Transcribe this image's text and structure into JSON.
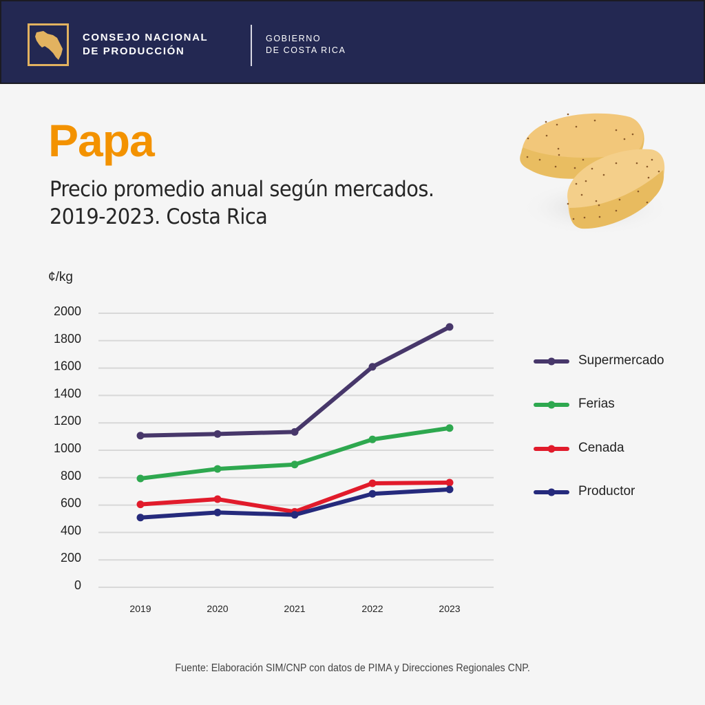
{
  "header": {
    "org_line1": "CONSEJO NACIONAL",
    "org_line2": "DE PRODUCCIÓN",
    "gov_line1": "GOBIERNO",
    "gov_line2": "DE COSTA RICA",
    "logo_icon": "costa-rica-map-icon",
    "colors": {
      "background": "#232852",
      "logo": "#e2b260"
    }
  },
  "title": "Papa",
  "subtitle_line1": "Precio promedio anual según mercados.",
  "subtitle_line2": "2019-2023. Costa Rica",
  "illustration": "potato-icon",
  "source": "Fuente: Elaboración SIM/CNP con datos de PIMA y Direcciones Regionales CNP.",
  "chart_data": {
    "type": "line",
    "title": "Precio promedio anual según mercados. 2019-2023. Costa Rica",
    "xlabel": "",
    "ylabel": "¢/kg",
    "x": [
      "2019",
      "2020",
      "2021",
      "2022",
      "2023"
    ],
    "ylim": [
      0,
      2000
    ],
    "yticks": [
      0,
      200,
      400,
      600,
      800,
      1000,
      1200,
      1400,
      1600,
      1800,
      2000
    ],
    "grid": true,
    "legend_position": "right",
    "series": [
      {
        "name": "Supermercado",
        "color": "#47376a",
        "values": [
          1107,
          1119,
          1134,
          1609,
          1900
        ]
      },
      {
        "name": "Ferias",
        "color": "#2ea84f",
        "values": [
          794,
          864,
          896,
          1079,
          1162
        ]
      },
      {
        "name": "Cenada",
        "color": "#e11b2b",
        "values": [
          605,
          643,
          551,
          759,
          764
        ]
      },
      {
        "name": "Productor",
        "color": "#252a7c",
        "values": [
          509,
          546,
          529,
          682,
          714
        ]
      }
    ]
  }
}
